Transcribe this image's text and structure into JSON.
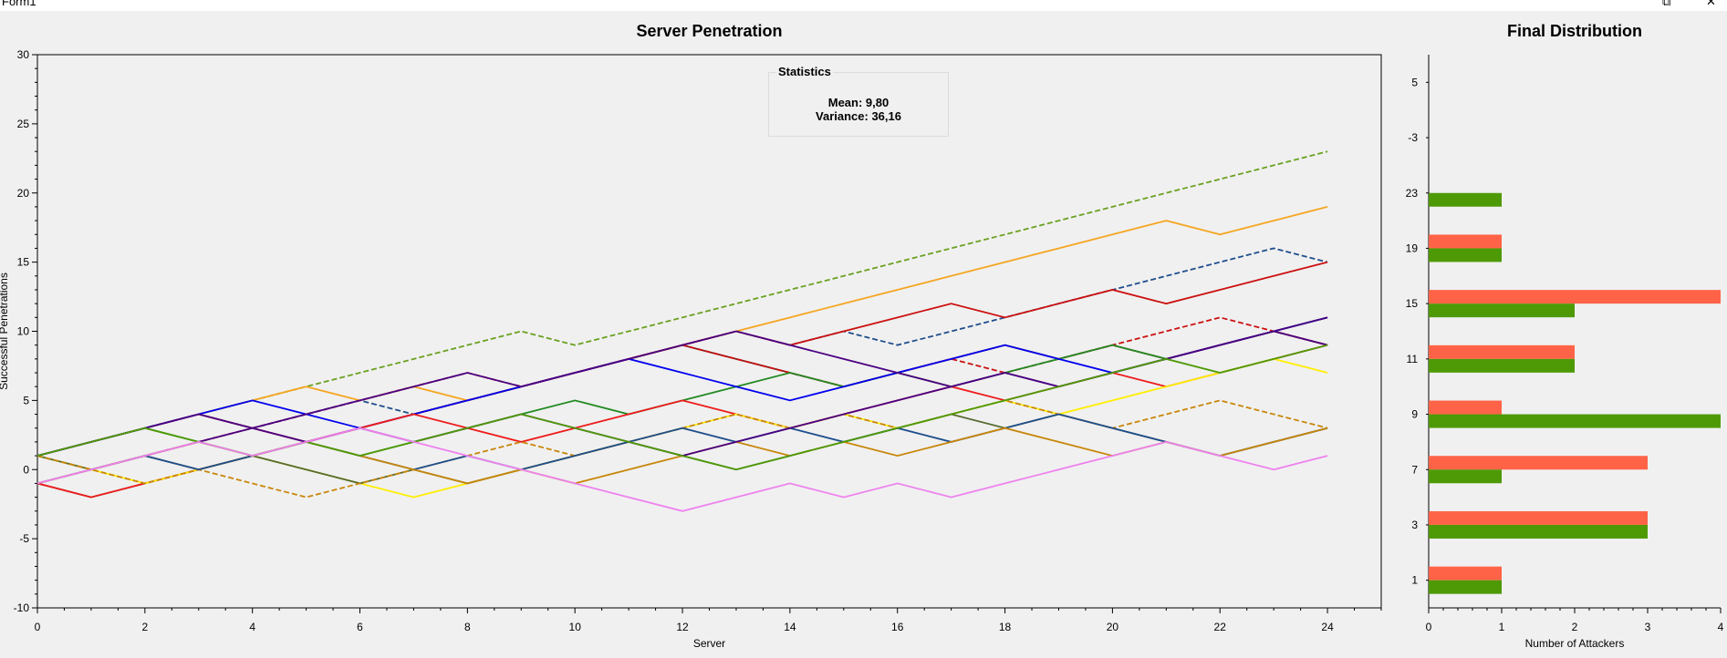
{
  "window": {
    "title": "Form1",
    "restore_icon": "restore-icon",
    "close_icon": "close-icon"
  },
  "statistics": {
    "title": "Statistics",
    "mean": "Mean: 9,80",
    "variance": "Variance: 36,16"
  },
  "chart_data": [
    {
      "type": "line",
      "title": "Server Penetration",
      "xlabel": "Server",
      "ylabel": "Successful Penetrations",
      "xlim": [
        0,
        25
      ],
      "ylim": [
        -10,
        30
      ],
      "xticks": [
        0,
        2,
        4,
        6,
        8,
        10,
        12,
        14,
        16,
        18,
        20,
        22,
        24
      ],
      "yticks": [
        -10,
        -5,
        0,
        5,
        10,
        15,
        20,
        25,
        30
      ],
      "grid": false,
      "series": [
        {
          "color": "#6aa121",
          "dash": true,
          "values": [
            1,
            2,
            3,
            4,
            5,
            6,
            7,
            8,
            9,
            10,
            9,
            10,
            11,
            12,
            13,
            14,
            15,
            16,
            17,
            18,
            19,
            20,
            21,
            22,
            23
          ]
        },
        {
          "color": "#f5a623",
          "dash": false,
          "values": [
            1,
            2,
            3,
            4,
            5,
            6,
            5,
            6,
            5,
            6,
            7,
            8,
            9,
            10,
            11,
            12,
            13,
            14,
            15,
            16,
            17,
            18,
            17,
            18,
            19
          ]
        },
        {
          "color": "#1f4e8c",
          "dash": true,
          "values": [
            1,
            2,
            3,
            4,
            3,
            4,
            5,
            4,
            5,
            6,
            7,
            8,
            9,
            10,
            9,
            10,
            9,
            10,
            11,
            12,
            13,
            14,
            15,
            16,
            15
          ]
        },
        {
          "color": "#cc1111",
          "dash": false,
          "values": [
            1,
            2,
            3,
            4,
            3,
            2,
            3,
            4,
            5,
            6,
            7,
            8,
            9,
            10,
            9,
            10,
            11,
            12,
            11,
            12,
            13,
            12,
            13,
            14,
            15
          ]
        },
        {
          "color": "#8b1a1a",
          "dash": false,
          "values": [
            -1,
            -2,
            -1,
            0,
            1,
            2,
            3,
            4,
            5,
            6,
            7,
            8,
            9,
            8,
            7,
            6,
            7,
            8,
            9,
            8,
            9,
            8,
            9,
            10,
            9
          ]
        },
        {
          "color": "#cc1111",
          "dash": true,
          "values": [
            1,
            0,
            1,
            2,
            3,
            4,
            5,
            6,
            7,
            6,
            7,
            8,
            9,
            8,
            7,
            6,
            7,
            8,
            7,
            8,
            9,
            10,
            11,
            10,
            9
          ]
        },
        {
          "color": "#228b22",
          "dash": false,
          "values": [
            1,
            2,
            3,
            2,
            1,
            2,
            1,
            2,
            3,
            4,
            5,
            4,
            5,
            6,
            7,
            6,
            7,
            6,
            7,
            8,
            9,
            8,
            9,
            10,
            11
          ]
        },
        {
          "color": "#0000ee",
          "dash": false,
          "values": [
            1,
            2,
            3,
            4,
            5,
            4,
            3,
            4,
            5,
            6,
            7,
            8,
            7,
            6,
            5,
            6,
            7,
            8,
            9,
            8,
            7,
            8,
            9,
            10,
            11
          ]
        },
        {
          "color": "#4b0082",
          "dash": false,
          "values": [
            -1,
            0,
            1,
            2,
            3,
            4,
            5,
            6,
            7,
            6,
            7,
            8,
            9,
            10,
            9,
            8,
            7,
            6,
            7,
            6,
            7,
            8,
            9,
            10,
            11
          ]
        },
        {
          "color": "#ee1c1c",
          "dash": false,
          "values": [
            -1,
            -2,
            -1,
            0,
            1,
            2,
            3,
            4,
            3,
            2,
            3,
            4,
            5,
            4,
            3,
            4,
            5,
            6,
            5,
            6,
            7,
            6,
            7,
            8,
            9
          ]
        },
        {
          "color": "#ffee00",
          "dash": false,
          "values": [
            1,
            0,
            -1,
            0,
            1,
            0,
            -1,
            -2,
            -1,
            0,
            1,
            2,
            3,
            4,
            3,
            4,
            3,
            4,
            5,
            4,
            5,
            6,
            7,
            8,
            7
          ]
        },
        {
          "color": "#556b2f",
          "dash": false,
          "values": [
            1,
            0,
            1,
            0,
            1,
            0,
            -1,
            0,
            -1,
            0,
            1,
            2,
            1,
            0,
            1,
            2,
            3,
            4,
            3,
            4,
            3,
            2,
            1,
            2,
            3
          ]
        },
        {
          "color": "#c8860a",
          "dash": true,
          "values": [
            1,
            0,
            -1,
            0,
            -1,
            -2,
            -1,
            0,
            1,
            2,
            1,
            2,
            3,
            4,
            3,
            4,
            3,
            4,
            5,
            4,
            3,
            4,
            5,
            4,
            3
          ]
        },
        {
          "color": "#1f4e8c",
          "dash": false,
          "values": [
            -1,
            0,
            1,
            0,
            1,
            2,
            1,
            0,
            1,
            0,
            1,
            2,
            3,
            2,
            3,
            2,
            3,
            2,
            3,
            4,
            3,
            2,
            1,
            2,
            3
          ]
        },
        {
          "color": "#c8860a",
          "dash": false,
          "values": [
            -1,
            0,
            1,
            2,
            1,
            2,
            1,
            0,
            -1,
            0,
            -1,
            0,
            1,
            2,
            1,
            2,
            1,
            2,
            3,
            2,
            1,
            2,
            1,
            2,
            3
          ]
        },
        {
          "color": "#4b0082",
          "dash": false,
          "values": [
            1,
            2,
            3,
            4,
            3,
            2,
            3,
            2,
            3,
            4,
            3,
            2,
            1,
            2,
            3,
            4,
            5,
            6,
            7,
            6,
            7,
            8,
            9,
            10,
            9
          ]
        },
        {
          "color": "#4e9a06",
          "dash": false,
          "values": [
            1,
            2,
            3,
            2,
            1,
            2,
            1,
            2,
            3,
            4,
            3,
            2,
            1,
            0,
            1,
            2,
            3,
            4,
            5,
            6,
            7,
            8,
            7,
            8,
            9
          ]
        },
        {
          "color": "#ee82ee",
          "dash": false,
          "values": [
            -1,
            0,
            1,
            2,
            1,
            2,
            3,
            2,
            1,
            0,
            -1,
            -2,
            -3,
            -2,
            -1,
            -2,
            -1,
            -2,
            -1,
            0,
            1,
            2,
            1,
            0,
            1
          ]
        }
      ]
    },
    {
      "type": "bar",
      "orientation": "horizontal",
      "title": "Final Distribution",
      "xlabel": "Number of Attackers",
      "xlim": [
        0,
        4
      ],
      "xticks": [
        0,
        1,
        2,
        3,
        4
      ],
      "categories": [
        "5",
        "-3",
        "23",
        "19",
        "15",
        "11",
        "9",
        "7",
        "3",
        "1"
      ],
      "series": [
        {
          "color": "#ff6347",
          "values": [
            0,
            0,
            0,
            1,
            4,
            2,
            1,
            3,
            3,
            1
          ]
        },
        {
          "color": "#4e9a06",
          "values": [
            0,
            0,
            1,
            1,
            2,
            2,
            4,
            1,
            3,
            1
          ]
        }
      ]
    }
  ]
}
